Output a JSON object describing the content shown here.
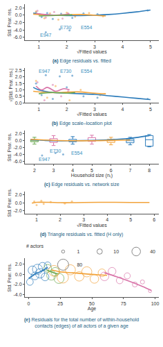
{
  "chart_data": [
    {
      "type": "scatter",
      "label": "(a)",
      "title": "Edge residuals vs. fitted",
      "x_label": "√Fitted values",
      "y_label": "Std. Pear. res.",
      "xlim": [
        0.5,
        5.3
      ],
      "ylim": [
        -6.8,
        3.0
      ],
      "xticks": [
        1,
        2,
        3,
        4,
        5
      ],
      "yticks": [
        {
          "value": -6,
          "label": "-6.0"
        },
        {
          "value": -4,
          "label": "-4.0"
        },
        {
          "value": -2,
          "label": "-2.0"
        },
        {
          "value": 0,
          "label": "0.0"
        },
        {
          "value": 2,
          "label": "2.0"
        }
      ],
      "grid": false,
      "series": [
        {
          "type": "scatter",
          "marker": "circle",
          "color": "#2b7bba",
          "x": [
            0.9,
            1.1,
            1.3,
            1.5,
            1.8,
            2.2,
            2.6,
            3.1,
            4.9,
            1.25,
            1.75,
            2.1
          ],
          "y": [
            0.8,
            -0.5,
            0.6,
            -1.0,
            0.4,
            -0.7,
            0.5,
            0.3,
            1.3,
            -4.6,
            -3.8,
            -4.1
          ]
        },
        {
          "type": "scatter",
          "marker": "circle",
          "color": "#f2a33a",
          "x": [
            0.9,
            1.2,
            1.4,
            1.7,
            2.0,
            2.3,
            2.8,
            3.3
          ],
          "y": [
            1.0,
            -0.8,
            0.5,
            -1.2,
            0.7,
            -0.4,
            0.6,
            -0.3
          ]
        },
        {
          "type": "scatter",
          "marker": "circle",
          "color": "#d873a8",
          "x": [
            0.95,
            1.25,
            1.55,
            1.85,
            2.05
          ],
          "y": [
            1.2,
            -0.6,
            0.9,
            -0.9,
            0.5
          ]
        },
        {
          "type": "line",
          "line_style": "solid",
          "color": "#2b7bba",
          "x": [
            0.8,
            1.0,
            1.3,
            1.6,
            2.0,
            2.5,
            3.0,
            3.5,
            4.0,
            4.5,
            5.0
          ],
          "y": [
            0.6,
            0.3,
            0.1,
            0.0,
            -0.1,
            -0.1,
            0.0,
            0.2,
            0.5,
            0.9,
            1.4
          ]
        },
        {
          "type": "line",
          "line_style": "solid",
          "color": "#f2a33a",
          "x": [
            0.8,
            1.2,
            1.6,
            2.0,
            2.5,
            3.0,
            3.4
          ],
          "y": [
            0.3,
            0.1,
            0.0,
            0.1,
            0.2,
            0.0,
            -0.2
          ]
        },
        {
          "type": "line",
          "line_style": "solid",
          "color": "#d873a8",
          "x": [
            0.9,
            1.2,
            1.5,
            1.8,
            2.1
          ],
          "y": [
            0.5,
            0.2,
            0.0,
            0.1,
            0.3
          ]
        },
        {
          "type": "line",
          "line_style": "solid",
          "color": "#6aa84f",
          "x": [
            1.0,
            1.4,
            1.8,
            2.2
          ],
          "y": [
            -0.2,
            -0.1,
            0.0,
            0.1
          ]
        }
      ],
      "annotations": [
        {
          "text": "E947",
          "x": 1.25,
          "y": -5.4
        },
        {
          "text": "E730",
          "x": 1.95,
          "y": -3.3
        },
        {
          "text": "E554",
          "x": 2.7,
          "y": -3.3
        }
      ]
    },
    {
      "type": "scatter",
      "label": "(b)",
      "title": "Edge scale–location plot",
      "x_label": "√Fitted values",
      "y_label": "√|Std. Pear. res.|",
      "xlim": [
        0.5,
        5.3
      ],
      "ylim": [
        0,
        2.7
      ],
      "xticks": [
        1,
        2,
        3,
        4,
        5
      ],
      "yticks": [
        {
          "value": 0,
          "label": "0.0"
        },
        {
          "value": 0.5,
          "label": "0.5"
        },
        {
          "value": 1,
          "label": "1.0"
        },
        {
          "value": 1.5,
          "label": "1.5"
        },
        {
          "value": 2,
          "label": "2.0"
        },
        {
          "value": 2.5,
          "label": "2.5"
        }
      ],
      "grid": false,
      "series": [
        {
          "type": "scatter",
          "marker": "circle",
          "color": "#2b7bba",
          "x": [
            0.9,
            1.1,
            1.25,
            1.5,
            1.75,
            2.0,
            2.2,
            2.6,
            3.1,
            4.9
          ],
          "y": [
            1.5,
            0.6,
            2.15,
            0.3,
            2.05,
            1.2,
            2.1,
            0.5,
            0.4,
            0.3
          ]
        },
        {
          "type": "scatter",
          "marker": "circle",
          "color": "#f2a33a",
          "x": [
            0.9,
            1.3,
            1.6,
            2.1,
            2.5,
            3.2
          ],
          "y": [
            1.7,
            0.4,
            1.3,
            0.2,
            1.0,
            0.6
          ]
        },
        {
          "type": "scatter",
          "marker": "circle",
          "color": "#d873a8",
          "x": [
            0.95,
            1.2,
            1.5,
            1.8,
            2.05
          ],
          "y": [
            1.6,
            0.2,
            1.4,
            0.5,
            0.9
          ]
        },
        {
          "type": "line",
          "line_style": "solid",
          "color": "#2b7bba",
          "x": [
            0.8,
            1.0,
            1.5,
            2.0,
            2.5,
            3.0,
            3.5,
            4.0,
            4.5,
            5.0
          ],
          "y": [
            1.2,
            1.0,
            0.8,
            0.75,
            0.7,
            0.65,
            0.55,
            0.45,
            0.35,
            0.25
          ]
        },
        {
          "type": "line",
          "line_style": "solid",
          "color": "#d873a8",
          "x": [
            0.9,
            1.1,
            1.3,
            1.6,
            1.9,
            2.1
          ],
          "y": [
            1.3,
            1.0,
            1.2,
            0.9,
            1.1,
            1.0
          ]
        },
        {
          "type": "line",
          "line_style": "solid",
          "color": "#f2a33a",
          "x": [
            0.8,
            1.3,
            1.8,
            2.4,
            3.0,
            3.4
          ],
          "y": [
            0.9,
            0.8,
            0.8,
            0.85,
            0.75,
            0.7
          ]
        },
        {
          "type": "line",
          "line_style": "solid",
          "color": "#6aa84f",
          "x": [
            1.0,
            1.5,
            2.0,
            2.3
          ],
          "y": [
            0.7,
            0.8,
            0.75,
            0.8
          ]
        }
      ],
      "annotations": [
        {
          "text": "E947",
          "x": 1.2,
          "y": 2.45
        },
        {
          "text": "E730",
          "x": 1.95,
          "y": 2.45
        },
        {
          "text": "E554",
          "x": 2.7,
          "y": 2.45
        }
      ]
    },
    {
      "type": "box",
      "label": "(c)",
      "title": "Edge residuals vs. network size",
      "x_label": "Household size (nₜ)",
      "y_label": "Std. Pear. res.",
      "xlim": [
        1.5,
        8.5
      ],
      "ylim": [
        -6.8,
        3.0
      ],
      "xticks": [
        2,
        3,
        4,
        5,
        6,
        7,
        8
      ],
      "yticks": [
        {
          "value": -6,
          "label": "-6.0"
        },
        {
          "value": -4,
          "label": "-4.0"
        },
        {
          "value": -2,
          "label": "-2.0"
        },
        {
          "value": 0,
          "label": "0.0"
        },
        {
          "value": 2,
          "label": "2.0"
        }
      ],
      "grid": false,
      "series": [
        {
          "type": "box",
          "color": "#6aa84f",
          "x": 2,
          "q1": -0.3,
          "median": 0,
          "q3": 0.3,
          "lowerfence": -1.0,
          "upperfence": 1.0
        },
        {
          "type": "box",
          "color": "#d873a8",
          "x": 3,
          "q1": -0.5,
          "median": 0,
          "q3": 0.6,
          "lowerfence": -1.4,
          "upperfence": 1.5
        },
        {
          "type": "box",
          "color": "#2b7bba",
          "x": 4,
          "q1": -0.3,
          "median": 0,
          "q3": 0.4,
          "lowerfence": -1.0,
          "upperfence": 1.2
        },
        {
          "type": "box",
          "color": "#d873a8",
          "x": 5,
          "q1": -0.2,
          "median": 0,
          "q3": 0.9,
          "lowerfence": -1.0,
          "upperfence": 1.6
        },
        {
          "type": "box",
          "color": "#f2a33a",
          "x": 6,
          "q1": -0.5,
          "median": 0,
          "q3": 0.4,
          "lowerfence": -1.2,
          "upperfence": 1.0
        },
        {
          "type": "box",
          "color": "#2b7bba",
          "x": 7,
          "q1": -0.6,
          "median": 0,
          "q3": 0.5,
          "lowerfence": -1.2,
          "upperfence": 1.0
        },
        {
          "type": "box",
          "color": "#2b7bba",
          "x": 8,
          "q1": -1.6,
          "median": 0.3,
          "q3": 1.5,
          "lowerfence": -1.8,
          "upperfence": 1.8
        },
        {
          "type": "scatter",
          "marker": "circle",
          "color": "#2b7bba",
          "x": [
            2.4,
            3.1,
            3.5
          ],
          "y": [
            -4.3,
            -3.6,
            -4.0
          ]
        },
        {
          "type": "line",
          "line_style": "solid",
          "color": "#2b7bba",
          "x": [
            1.8,
            2.5,
            3,
            4,
            5,
            6,
            7,
            8
          ],
          "y": [
            0.3,
            0.1,
            0,
            0,
            0.1,
            0.3,
            0.7,
            1.5
          ]
        },
        {
          "type": "line",
          "line_style": "solid",
          "color": "#f2a33a",
          "x": [
            1.8,
            3,
            4,
            5,
            6,
            7
          ],
          "y": [
            0.4,
            0.1,
            0,
            0,
            0.1,
            0.2
          ]
        }
      ],
      "annotations": [
        {
          "text": "E947",
          "x": 2.5,
          "y": -5.4
        },
        {
          "text": "E730",
          "x": 3.1,
          "y": -2.9
        },
        {
          "text": "E554",
          "x": 4.2,
          "y": -3.6
        }
      ]
    },
    {
      "type": "scatter",
      "label": "(d)",
      "title": "Triangle residuals vs. fitted (H only)",
      "x_label": "√Fitted values",
      "y_label": "Std. Pear. res.",
      "xlim": [
        0.5,
        6.2
      ],
      "ylim": [
        -2.8,
        2.8
      ],
      "xticks": [
        1,
        2,
        3,
        4,
        5,
        6
      ],
      "yticks": [
        {
          "value": -2,
          "label": "-2.0"
        },
        {
          "value": 0,
          "label": "0.0"
        },
        {
          "value": 2,
          "label": "2.0"
        }
      ],
      "grid": false,
      "series": [
        {
          "type": "scatter",
          "marker": "circle",
          "color": "#f2a33a",
          "x": [
            0.9,
            1.0,
            1.2,
            1.3,
            1.6,
            2.2,
            2.5
          ],
          "y": [
            0.3,
            -0.6,
            0.5,
            -0.3,
            0.2,
            -0.2,
            0.3
          ]
        },
        {
          "type": "line",
          "line_style": "solid",
          "color": "#f2a33a",
          "x": [
            0.8,
            1.0,
            1.5,
            2,
            2.5,
            3,
            4,
            5,
            5.8
          ],
          "y": [
            -0.1,
            0.1,
            0.1,
            0.0,
            0.0,
            0.05,
            0.1,
            0.05,
            0.05
          ]
        }
      ],
      "annotations": []
    },
    {
      "type": "bubble",
      "label": "(e)",
      "title": [
        "Residuals for the total number of within-household",
        "contacts (edges) of all actors of a given age"
      ],
      "x_label": "Age",
      "y_label": "Std. Pear. res.",
      "xlim": [
        -3,
        103
      ],
      "ylim": [
        -4.5,
        3.2
      ],
      "xticks": [
        0,
        25,
        50,
        75,
        100
      ],
      "yticks": [
        {
          "value": -4,
          "label": "-4.0"
        },
        {
          "value": -2,
          "label": "-2.0"
        },
        {
          "value": 0,
          "label": "0.0"
        },
        {
          "value": 2,
          "label": "2.0"
        }
      ],
      "grid": false,
      "size_legend": {
        "title": "# actors",
        "values": [
          1,
          10,
          40,
          80
        ]
      },
      "series": [
        {
          "type": "bubble",
          "marker": "open circle",
          "color": "#2b7bba",
          "x": [
            1,
            3,
            5,
            7,
            9,
            11,
            13,
            15
          ],
          "y": [
            -1.5,
            0.8,
            -0.3,
            1.0,
            0.2,
            1.5,
            -0.5,
            1.8
          ],
          "actors": [
            20,
            40,
            30,
            60,
            50,
            40,
            30,
            20
          ]
        },
        {
          "type": "bubble",
          "marker": "open circle",
          "color": "#6aa84f",
          "x": [
            15,
            18,
            21,
            24
          ],
          "y": [
            1.2,
            -0.2,
            0.5,
            -0.8
          ],
          "actors": [
            30,
            50,
            40,
            60
          ]
        },
        {
          "type": "bubble",
          "marker": "open circle",
          "color": "#f2a33a",
          "x": [
            20,
            27,
            33,
            40,
            46,
            52,
            58
          ],
          "y": [
            0.7,
            -0.6,
            0.9,
            -0.4,
            0.5,
            -0.9,
            0.3
          ],
          "actors": [
            70,
            80,
            60,
            50,
            60,
            40,
            30
          ]
        },
        {
          "type": "bubble",
          "marker": "open circle",
          "color": "#d873a8",
          "x": [
            60,
            66,
            72,
            78,
            84,
            90,
            96
          ],
          "y": [
            -0.4,
            0.6,
            -1.2,
            -0.3,
            -2.0,
            -1.5,
            -3.3
          ],
          "actors": [
            40,
            30,
            20,
            15,
            8,
            4,
            1
          ]
        },
        {
          "type": "line",
          "line_style": "solid",
          "color": "#2b7bba",
          "x": [
            0,
            3,
            6,
            9,
            12,
            15
          ],
          "y": [
            -0.8,
            -0.3,
            0.2,
            0.5,
            0.9,
            1.4
          ]
        },
        {
          "type": "line",
          "line_style": "solid",
          "color": "#6aa84f",
          "x": [
            14,
            17,
            20,
            23
          ],
          "y": [
            0.9,
            0.6,
            0.3,
            0.1
          ]
        },
        {
          "type": "line",
          "line_style": "solid",
          "color": "#f2a33a",
          "x": [
            18,
            25,
            35,
            45,
            55,
            62
          ],
          "y": [
            0.9,
            0.5,
            0.3,
            0.1,
            -0.1,
            -0.2
          ]
        },
        {
          "type": "line",
          "line_style": "solid",
          "color": "#d873a8",
          "x": [
            60,
            70,
            80,
            90,
            97
          ],
          "y": [
            0.3,
            -0.5,
            -1.4,
            -2.4,
            -3.2
          ]
        }
      ],
      "annotations": []
    }
  ]
}
